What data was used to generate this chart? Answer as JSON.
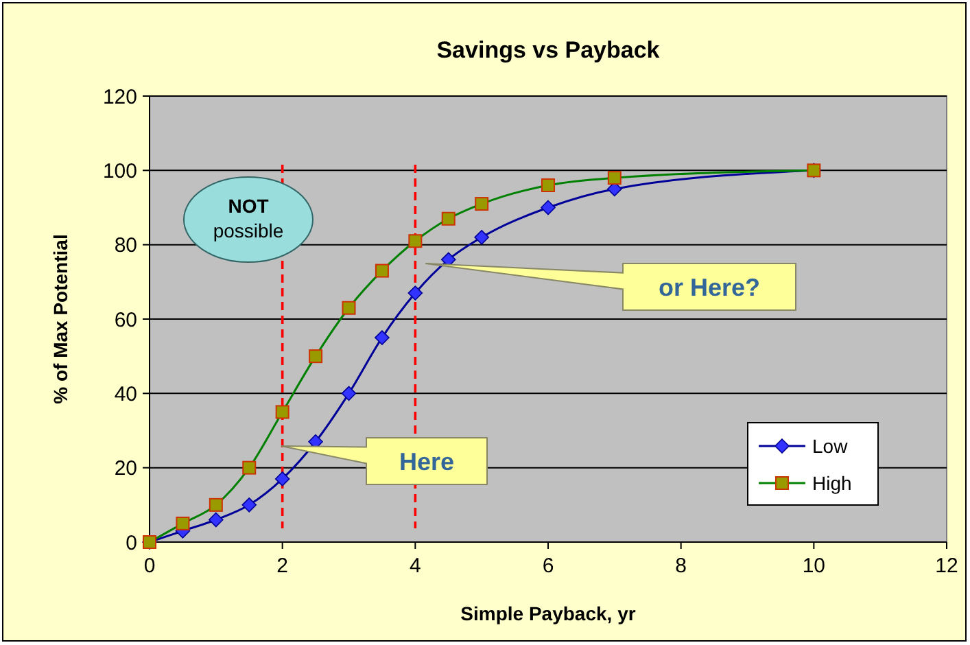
{
  "chart_data": {
    "type": "line",
    "title": "Savings vs Payback",
    "xlabel": "Simple Payback, yr",
    "ylabel": "% of Max Potential",
    "series": [
      {
        "name": "Low",
        "color": "#000099",
        "marker": "diamond",
        "x": [
          0,
          0.5,
          1,
          1.5,
          2,
          2.5,
          3,
          3.5,
          4,
          4.5,
          5,
          6,
          7,
          10
        ],
        "values": [
          0,
          3,
          6,
          10,
          17,
          27,
          40,
          55,
          67,
          76,
          82,
          90,
          95,
          100
        ]
      },
      {
        "name": "High",
        "color": "#008000",
        "marker": "square",
        "x": [
          0,
          0.5,
          1,
          1.5,
          2,
          2.5,
          3,
          3.5,
          4,
          4.5,
          5,
          6,
          7,
          10
        ],
        "values": [
          0,
          5,
          10,
          20,
          35,
          50,
          63,
          73,
          81,
          87,
          91,
          96,
          98,
          100
        ]
      }
    ],
    "xlim": [
      0,
      12
    ],
    "xticks": [
      0,
      2,
      4,
      6,
      8,
      10,
      12
    ],
    "ylim": [
      0,
      120
    ],
    "yticks": [
      0,
      20,
      40,
      60,
      80,
      100,
      120
    ],
    "grid": "y",
    "legend": "bottom right",
    "ref_lines": [
      {
        "axis": "x",
        "value": 2,
        "color": "#ff0000",
        "line_style": "dashed"
      },
      {
        "axis": "x",
        "value": 4,
        "color": "#ff0000",
        "line_style": "dashed"
      }
    ],
    "annotations": [
      "NOT possible",
      "Here",
      "or Here?"
    ]
  }
}
